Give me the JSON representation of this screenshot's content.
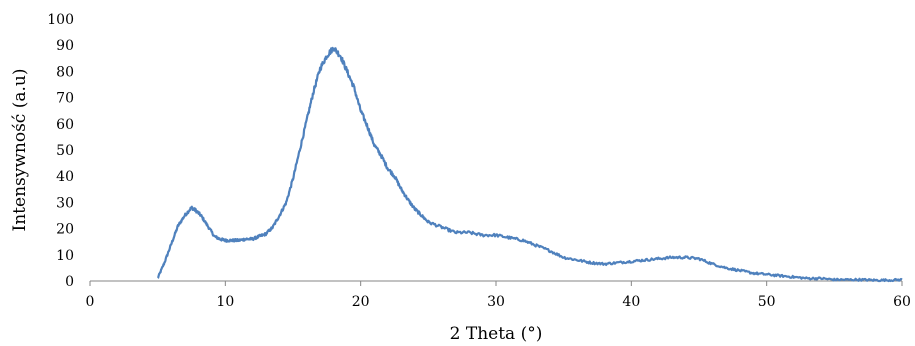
{
  "chart_data": {
    "type": "line",
    "title": "",
    "xlabel": "2 Theta (°)",
    "ylabel": "Intensywność (a.u)",
    "xlim": [
      0,
      60
    ],
    "ylim": [
      0,
      100
    ],
    "x_ticks": [
      0,
      10,
      20,
      30,
      40,
      50,
      60
    ],
    "y_ticks": [
      0,
      10,
      20,
      30,
      40,
      50,
      60,
      70,
      80,
      90,
      100
    ],
    "x_tick_labels": [
      "0",
      "10",
      "20",
      "30",
      "40",
      "50",
      "60"
    ],
    "y_tick_labels": [
      "0",
      "10",
      "20",
      "30",
      "40",
      "50",
      "60",
      "70",
      "80",
      "90",
      "100"
    ],
    "grid": false,
    "legend": "none",
    "color": "#4F81BD",
    "series": [
      {
        "x": [
          5.0,
          5.5,
          6.0,
          6.5,
          7.0,
          7.5,
          7.8,
          8.2,
          8.7,
          9.2,
          9.6,
          10.0,
          10.5,
          11.0,
          11.5,
          12.0,
          12.5,
          13.0,
          13.5,
          14.0,
          14.5,
          15.0,
          15.5,
          16.0,
          16.5,
          17.0,
          17.5,
          18.0,
          18.5,
          19.0,
          19.5,
          20.0,
          20.5,
          21.0,
          21.5,
          22.0,
          22.5,
          23.0,
          23.5,
          24.0,
          24.5,
          25.0,
          26.0,
          27.0,
          28.0,
          29.0,
          30.0,
          31.0,
          32.0,
          33.0,
          34.0,
          35.0,
          36.0,
          37.0,
          38.0,
          39.0,
          40.0,
          41.0,
          42.0,
          43.0,
          44.0,
          45.0,
          46.0,
          47.0,
          48.0,
          49.0,
          50.0,
          51.0,
          52.0,
          53.0,
          54.0,
          55.0,
          56.0,
          57.0,
          58.0,
          59.0,
          60.0
        ],
        "values": [
          1,
          7,
          14,
          21,
          25,
          28,
          27,
          25,
          21,
          17,
          16,
          15.5,
          15.5,
          15.5,
          16,
          16,
          17,
          18,
          20.5,
          25,
          30,
          39,
          50,
          61,
          72,
          81,
          86,
          89,
          86,
          80,
          74,
          65,
          59,
          52,
          48,
          43,
          40,
          35,
          31,
          27.5,
          25,
          22.5,
          20.5,
          18.5,
          18.5,
          17.5,
          17.5,
          16.5,
          15.5,
          13.5,
          11.5,
          9,
          8,
          7,
          6.5,
          7,
          7.5,
          8,
          8.5,
          9,
          9,
          8.5,
          6.5,
          5,
          4,
          3,
          2.5,
          2,
          1.5,
          1,
          1,
          0.5,
          0.5,
          0.5,
          0.3,
          0.3,
          0.5
        ]
      }
    ]
  }
}
